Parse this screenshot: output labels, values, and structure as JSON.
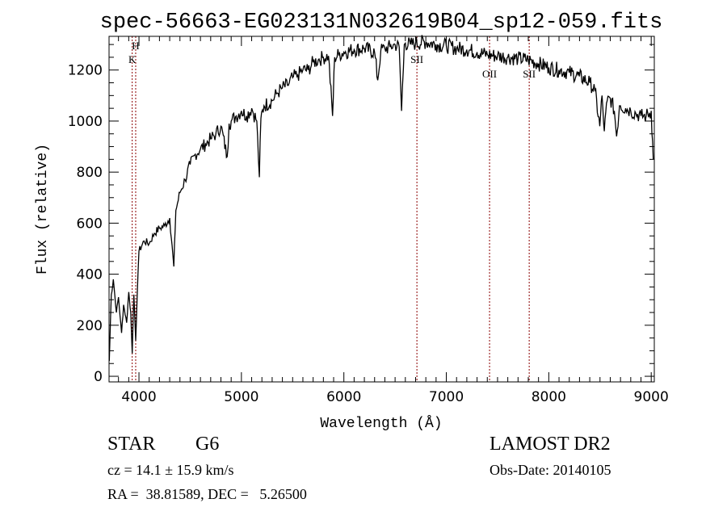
{
  "chart_data": {
    "type": "line",
    "title": "spec-56663-EG023131N032619B04_sp12-059.fits",
    "xlabel": "Wavelength (Å)",
    "ylabel": "Flux (relative)",
    "xlim": [
      3708,
      9030
    ],
    "ylim": [
      -22,
      1332
    ],
    "xticks": [
      4000,
      5000,
      6000,
      7000,
      8000,
      9000
    ],
    "xtick_labels": [
      "4000",
      "5000",
      "6000",
      "7000",
      "8000",
      "9000"
    ],
    "yticks": [
      0,
      200,
      400,
      600,
      800,
      1000,
      1200
    ],
    "ytick_labels": [
      "0",
      "200",
      "400",
      "600",
      "800",
      "1000",
      "1200"
    ],
    "grid": false,
    "series": [
      {
        "name": "spectrum",
        "color": "#000000",
        "x": [
          3710,
          3730,
          3750,
          3780,
          3800,
          3830,
          3850,
          3880,
          3900,
          3920,
          3934,
          3950,
          3968,
          3990,
          4000,
          4050,
          4100,
          4150,
          4200,
          4250,
          4300,
          4340,
          4360,
          4400,
          4450,
          4500,
          4550,
          4600,
          4650,
          4700,
          4750,
          4800,
          4861,
          4880,
          4900,
          4950,
          5000,
          5050,
          5100,
          5150,
          5175,
          5190,
          5220,
          5300,
          5350,
          5400,
          5450,
          5500,
          5550,
          5600,
          5650,
          5700,
          5750,
          5800,
          5850,
          5890,
          5910,
          5950,
          6000,
          6100,
          6200,
          6300,
          6330,
          6360,
          6400,
          6450,
          6500,
          6540,
          6563,
          6590,
          6600,
          6650,
          6700,
          6800,
          6900,
          7000,
          7100,
          7200,
          7300,
          7400,
          7500,
          7600,
          7700,
          7800,
          7900,
          8000,
          8100,
          8200,
          8300,
          8400,
          8450,
          8498,
          8520,
          8542,
          8570,
          8600,
          8640,
          8662,
          8690,
          8700,
          8750,
          8800,
          8850,
          8900,
          8950,
          9000,
          9020
        ],
        "y": [
          60,
          320,
          380,
          250,
          310,
          170,
          280,
          210,
          330,
          250,
          90,
          320,
          140,
          400,
          490,
          530,
          520,
          560,
          580,
          590,
          620,
          430,
          650,
          720,
          770,
          830,
          870,
          890,
          910,
          930,
          950,
          980,
          860,
          990,
          1000,
          1020,
          1040,
          1020,
          1050,
          1000,
          780,
          1010,
          1060,
          1080,
          1110,
          1130,
          1140,
          1170,
          1180,
          1200,
          1200,
          1230,
          1240,
          1250,
          1255,
          1020,
          1250,
          1260,
          1270,
          1280,
          1285,
          1270,
          1160,
          1275,
          1285,
          1290,
          1300,
          1290,
          1040,
          1300,
          1305,
          1300,
          1305,
          1310,
          1300,
          1295,
          1285,
          1280,
          1270,
          1260,
          1255,
          1250,
          1245,
          1240,
          1225,
          1210,
          1200,
          1190,
          1175,
          1150,
          1120,
          980,
          1100,
          960,
          1080,
          1090,
          1040,
          940,
          1060,
          1060,
          1050,
          1040,
          1030,
          1020,
          1020,
          1040,
          850
        ]
      }
    ],
    "spectral_lines": [
      {
        "label": "K",
        "x": 3934,
        "color": "#8b0000"
      },
      {
        "label": "H",
        "x": 3968,
        "color": "#8b0000"
      },
      {
        "label": "SII",
        "x": 6713,
        "color": "#8b0000"
      },
      {
        "label": "OII",
        "x": 7422,
        "color": "#8b0000"
      },
      {
        "label": "SII",
        "x": 7809,
        "color": "#8b0000"
      }
    ]
  },
  "info": {
    "class": "STAR",
    "subclass": "G6",
    "survey": "LAMOST DR2",
    "cz": "cz = 14.1 ± 15.9 km/s",
    "obs_date": "Obs-Date: 20140105",
    "coords": "RA =  38.81589, DEC =   5.26500"
  }
}
